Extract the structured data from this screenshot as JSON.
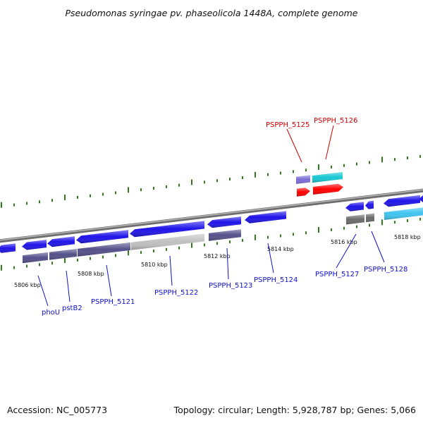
{
  "title": "Pseudomonas syringae pv. phaseolicola 1448A, complete genome",
  "footer": {
    "accession": "Accession: NC_005773",
    "summary": "Topology: circular; Length: 5,928,787 bp; Genes: 5,066"
  },
  "colors": {
    "gene_forward": "#1f14e8",
    "gene_reverse": "#1f14e8",
    "gene_highlight": "#ff0000",
    "cds_cyan": "#16c8d2",
    "cds_lightblue": "#3fc4f0",
    "cds_purple": "#54508a",
    "cds_violet": "#7a6ed8",
    "cds_gray": "#c0c0c0",
    "cds_darkgray": "#6b6b6b",
    "backbone": "#8a8a8a",
    "tick": "#2e7d1a",
    "label_blue": "#1010cc",
    "label_red": "#cc0000"
  },
  "kbp_marks": [
    "5806 kbp",
    "5808 kbp",
    "5810 kbp",
    "5812 kbp",
    "5814 kbp",
    "5816 kbp",
    "5818 kbp"
  ],
  "genes": [
    {
      "id": "phoU",
      "color": "blue"
    },
    {
      "id": "pstB2",
      "color": "blue"
    },
    {
      "id": "PSPPH_5121",
      "color": "blue"
    },
    {
      "id": "PSPPH_5122",
      "color": "blue"
    },
    {
      "id": "PSPPH_5123",
      "color": "blue"
    },
    {
      "id": "PSPPH_5124",
      "color": "blue"
    },
    {
      "id": "PSPPH_5125",
      "color": "red"
    },
    {
      "id": "PSPPH_5126",
      "color": "red"
    },
    {
      "id": "PSPPH_5127",
      "color": "blue"
    },
    {
      "id": "PSPPH_5128",
      "color": "blue"
    }
  ]
}
